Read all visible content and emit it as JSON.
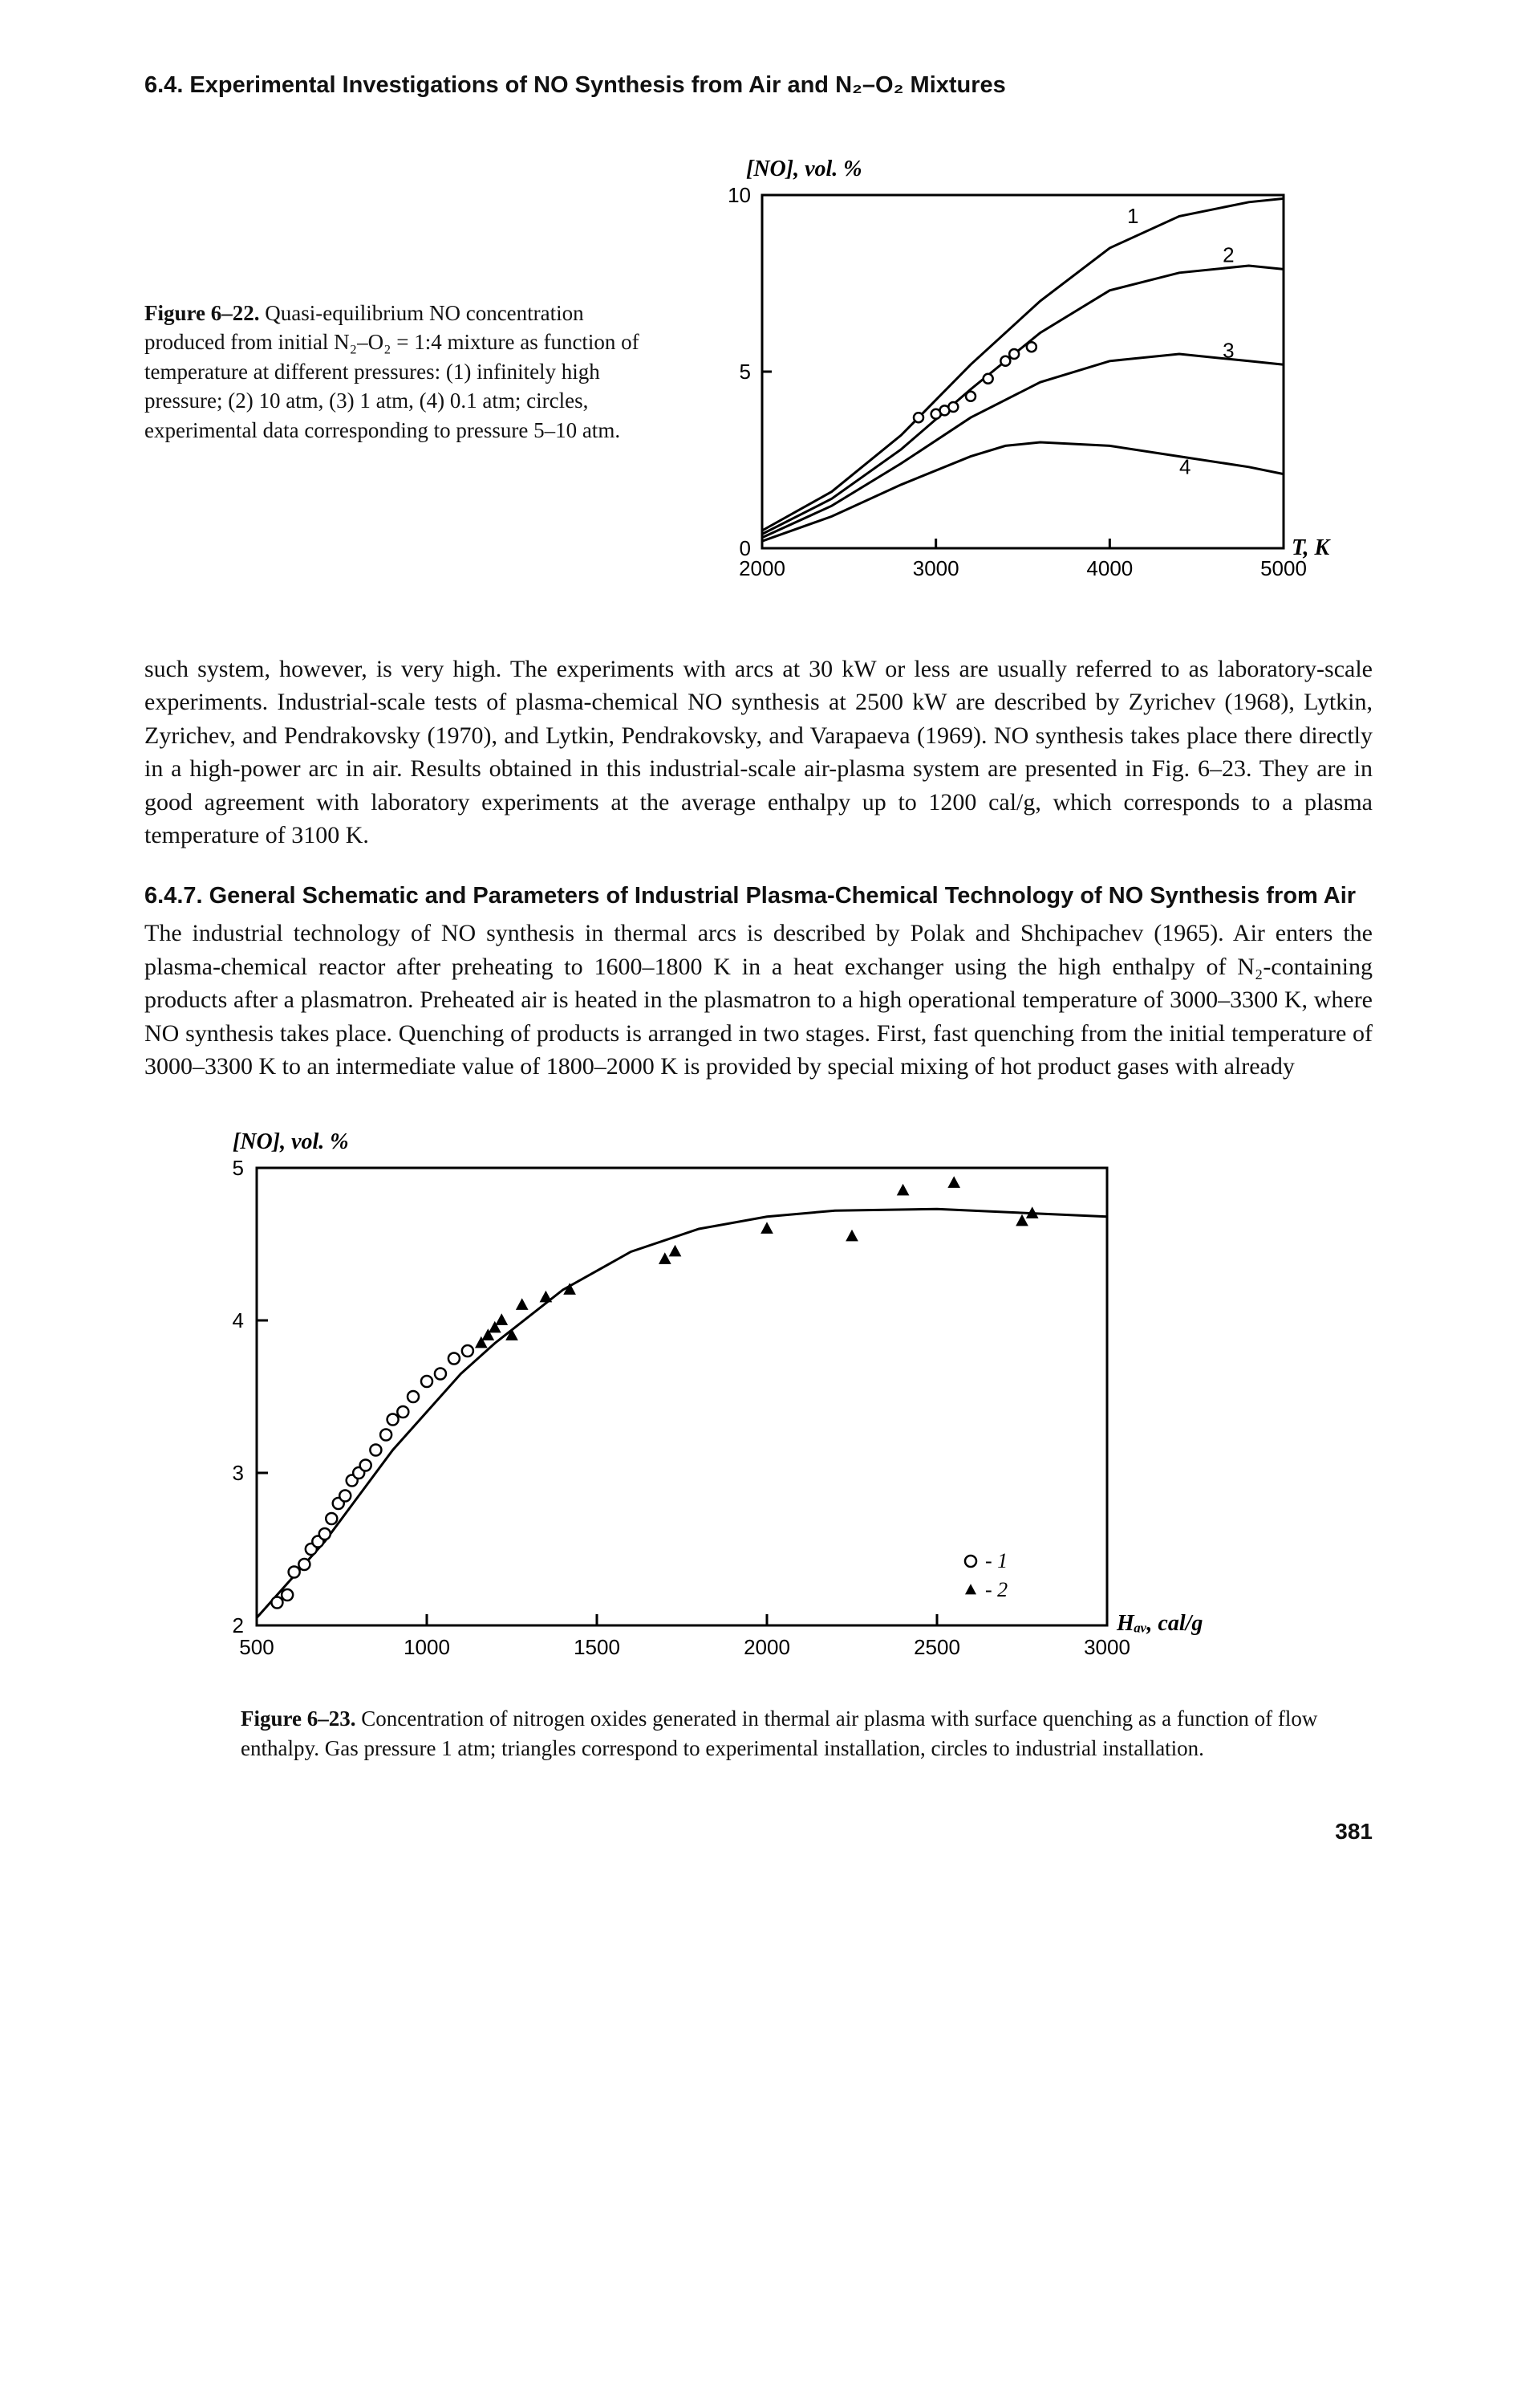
{
  "header": {
    "section": "6.4. Experimental Investigations of NO Synthesis from Air and N₂–O₂ Mixtures"
  },
  "fig22": {
    "caption_bold": "Figure 6–22.",
    "caption_rest": " Quasi-equilibrium NO concentration produced from initial N₂–O₂ = 1:4 mixture as function of temperature at different pressures: (1) infinitely high pressure; (2) 10 atm, (3) 1 atm, (4) 0.1 atm; circles, experimental data corresponding to pressure 5–10 atm.",
    "yaxis_title": "[NO], vol. %",
    "xaxis_title": "T, K",
    "xlim": [
      2000,
      5000
    ],
    "ylim": [
      0,
      10
    ],
    "xticks": [
      2000,
      3000,
      4000,
      5000
    ],
    "yticks": [
      0,
      5,
      10
    ],
    "series": [
      {
        "label": "1",
        "label_x": 4100,
        "label_y": 9.2,
        "data": [
          [
            2000,
            0.5
          ],
          [
            2400,
            1.6
          ],
          [
            2800,
            3.2
          ],
          [
            3200,
            5.2
          ],
          [
            3600,
            7.0
          ],
          [
            4000,
            8.5
          ],
          [
            4400,
            9.4
          ],
          [
            4800,
            9.8
          ],
          [
            5000,
            9.9
          ]
        ]
      },
      {
        "label": "2",
        "label_x": 4650,
        "label_y": 8.1,
        "data": [
          [
            2000,
            0.4
          ],
          [
            2400,
            1.4
          ],
          [
            2800,
            2.8
          ],
          [
            3200,
            4.5
          ],
          [
            3600,
            6.1
          ],
          [
            4000,
            7.3
          ],
          [
            4400,
            7.8
          ],
          [
            4800,
            8.0
          ],
          [
            5000,
            7.9
          ]
        ]
      },
      {
        "label": "3",
        "label_x": 4650,
        "label_y": 5.4,
        "data": [
          [
            2000,
            0.3
          ],
          [
            2400,
            1.2
          ],
          [
            2800,
            2.4
          ],
          [
            3200,
            3.7
          ],
          [
            3600,
            4.7
          ],
          [
            4000,
            5.3
          ],
          [
            4400,
            5.5
          ],
          [
            4800,
            5.3
          ],
          [
            5000,
            5.2
          ]
        ]
      },
      {
        "label": "4",
        "label_x": 4400,
        "label_y": 2.1,
        "data": [
          [
            2000,
            0.2
          ],
          [
            2400,
            0.9
          ],
          [
            2800,
            1.8
          ],
          [
            3200,
            2.6
          ],
          [
            3400,
            2.9
          ],
          [
            3600,
            3.0
          ],
          [
            4000,
            2.9
          ],
          [
            4400,
            2.6
          ],
          [
            4800,
            2.3
          ],
          [
            5000,
            2.1
          ]
        ]
      }
    ],
    "markers_circles": [
      [
        2900,
        3.7
      ],
      [
        3000,
        3.8
      ],
      [
        3050,
        3.9
      ],
      [
        3100,
        4.0
      ],
      [
        3200,
        4.3
      ],
      [
        3300,
        4.8
      ],
      [
        3400,
        5.3
      ],
      [
        3450,
        5.5
      ],
      [
        3550,
        5.7
      ]
    ],
    "line_color": "#000000",
    "marker_stroke": "#000000",
    "marker_fill": "#ffffff",
    "marker_radius": 6,
    "background_color": "#ffffff"
  },
  "para1": "such system, however, is very high. The experiments with arcs at 30 kW or less are usually referred to as laboratory-scale experiments. Industrial-scale tests of plasma-chemical NO synthesis at 2500 kW are described by Zyrichev (1968), Lytkin, Zyrichev, and Pendrakovsky (1970), and Lytkin, Pendrakovsky, and Varapaeva (1969). NO synthesis takes place there directly in a high-power arc in air. Results obtained in this industrial-scale air-plasma system are presented in Fig. 6–23. They are in good agreement with laboratory experiments at the average enthalpy up to 1200 cal/g, which corresponds to a plasma temperature of 3100 K.",
  "sub647": {
    "title": "6.4.7. General Schematic and Parameters of Industrial Plasma-Chemical Technology of NO Synthesis from Air",
    "body": "The industrial technology of NO synthesis in thermal arcs is described by Polak and Shchipachev (1965). Air enters the plasma-chemical reactor after preheating to 1600–1800 K in a heat exchanger using the high enthalpy of N₂-containing products after a plasmatron. Preheated air is heated in the plasmatron to a high operational temperature of 3000–3300 K, where NO synthesis takes place. Quenching of products is arranged in two stages. First, fast quenching from the initial temperature of 3000–3300 K to an intermediate value of 1800–2000 K is provided by special mixing of hot product gases with already"
  },
  "fig23": {
    "yaxis_title": "[NO], vol. %",
    "xaxis_title": "Hₐᵥ, cal/g",
    "xlim": [
      500,
      3000
    ],
    "ylim": [
      2,
      5
    ],
    "xticks": [
      500,
      1000,
      1500,
      2000,
      2500,
      3000
    ],
    "yticks": [
      2,
      3,
      4,
      5
    ],
    "curve": [
      [
        500,
        2.05
      ],
      [
        600,
        2.3
      ],
      [
        700,
        2.55
      ],
      [
        800,
        2.85
      ],
      [
        900,
        3.15
      ],
      [
        1000,
        3.4
      ],
      [
        1100,
        3.65
      ],
      [
        1200,
        3.85
      ],
      [
        1400,
        4.2
      ],
      [
        1600,
        4.45
      ],
      [
        1800,
        4.6
      ],
      [
        2000,
        4.68
      ],
      [
        2200,
        4.72
      ],
      [
        2500,
        4.73
      ],
      [
        2800,
        4.7
      ],
      [
        3000,
        4.68
      ]
    ],
    "circles": [
      [
        560,
        2.15
      ],
      [
        590,
        2.2
      ],
      [
        610,
        2.35
      ],
      [
        640,
        2.4
      ],
      [
        660,
        2.5
      ],
      [
        680,
        2.55
      ],
      [
        700,
        2.6
      ],
      [
        720,
        2.7
      ],
      [
        740,
        2.8
      ],
      [
        760,
        2.85
      ],
      [
        780,
        2.95
      ],
      [
        800,
        3.0
      ],
      [
        820,
        3.05
      ],
      [
        850,
        3.15
      ],
      [
        880,
        3.25
      ],
      [
        900,
        3.35
      ],
      [
        930,
        3.4
      ],
      [
        960,
        3.5
      ],
      [
        1000,
        3.6
      ],
      [
        1040,
        3.65
      ],
      [
        1080,
        3.75
      ],
      [
        1120,
        3.8
      ]
    ],
    "triangles": [
      [
        1160,
        3.85
      ],
      [
        1180,
        3.9
      ],
      [
        1200,
        3.95
      ],
      [
        1220,
        4.0
      ],
      [
        1250,
        3.9
      ],
      [
        1280,
        4.1
      ],
      [
        1350,
        4.15
      ],
      [
        1420,
        4.2
      ],
      [
        1700,
        4.4
      ],
      [
        1730,
        4.45
      ],
      [
        2000,
        4.6
      ],
      [
        2250,
        4.55
      ],
      [
        2400,
        4.85
      ],
      [
        2550,
        4.9
      ],
      [
        2750,
        4.65
      ],
      [
        2780,
        4.7
      ]
    ],
    "legend": [
      {
        "symbol": "circle",
        "label": "1"
      },
      {
        "symbol": "triangle",
        "label": "2"
      }
    ],
    "line_color": "#000000",
    "marker_stroke": "#000000",
    "circle_fill": "#ffffff",
    "triangle_fill": "#000000",
    "marker_size": 7,
    "background_color": "#ffffff",
    "caption_bold": "Figure 6–23.",
    "caption_rest": " Concentration of nitrogen oxides generated in thermal air plasma with surface quenching as a function of flow enthalpy. Gas pressure 1 atm; triangles correspond to experimental installation, circles to industrial installation."
  },
  "page_number": "381"
}
